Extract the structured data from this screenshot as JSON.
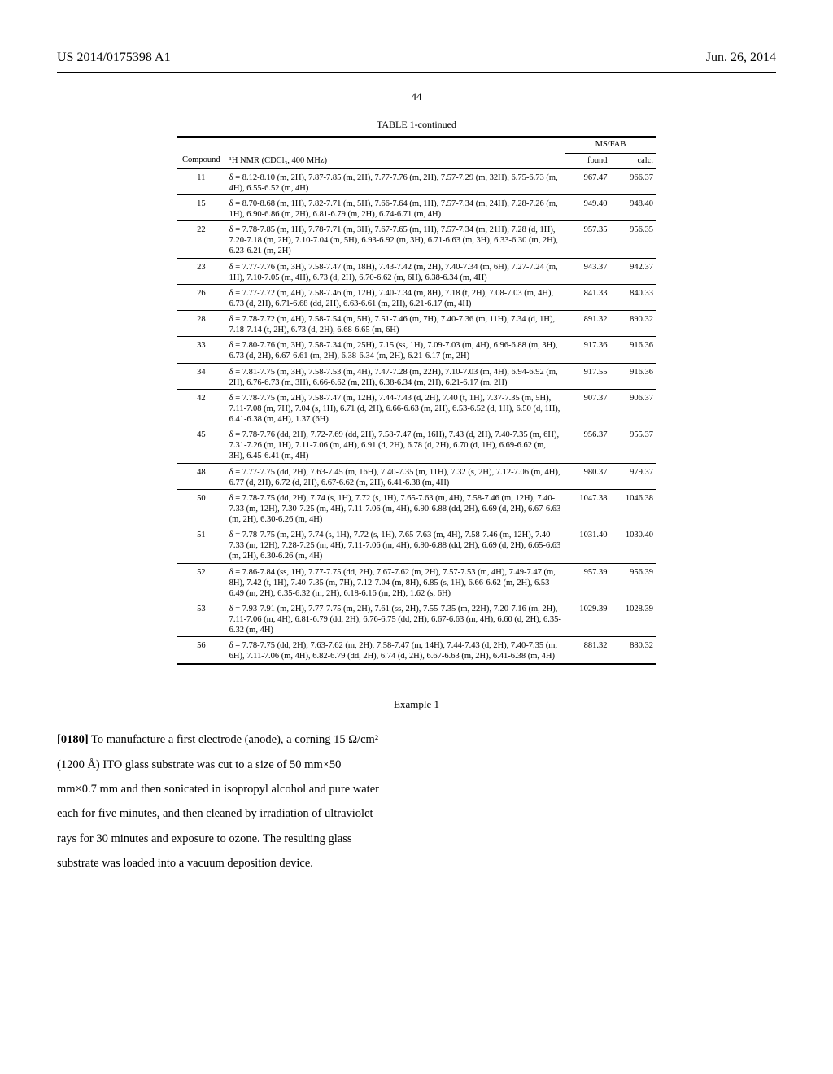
{
  "header": {
    "left": "US 2014/0175398 A1",
    "right": "Jun. 26, 2014"
  },
  "page_number": "44",
  "table": {
    "title": "TABLE 1-continued",
    "col_compound": "Compound",
    "col_nmr": "¹H NMR (CDCl₃, 400 MHz)",
    "col_ms_group": "MS/FAB",
    "col_found": "found",
    "col_calc": "calc.",
    "rows": [
      {
        "c": "11",
        "nmr": "δ = 8.12-8.10 (m, 2H), 7.87-7.85 (m, 2H), 7.77-7.76 (m, 2H), 7.57-7.29 (m, 32H), 6.75-6.73 (m, 4H), 6.55-6.52 (m, 4H)",
        "f": "967.47",
        "ca": "966.37"
      },
      {
        "c": "15",
        "nmr": "δ = 8.70-8.68 (m, 1H), 7.82-7.71 (m, 5H), 7.66-7.64 (m, 1H), 7.57-7.34 (m, 24H), 7.28-7.26 (m, 1H), 6.90-6.86 (m, 2H), 6.81-6.79 (m, 2H), 6.74-6.71 (m, 4H)",
        "f": "949.40",
        "ca": "948.40"
      },
      {
        "c": "22",
        "nmr": "δ = 7.78-7.85 (m, 1H), 7.78-7.71 (m, 3H), 7.67-7.65 (m, 1H), 7.57-7.34 (m, 21H), 7.28 (d, 1H), 7.20-7.18 (m, 2H), 7.10-7.04 (m, 5H), 6.93-6.92 (m, 3H), 6.71-6.63 (m, 3H), 6.33-6.30 (m, 2H), 6.23-6.21 (m, 2H)",
        "f": "957.35",
        "ca": "956.35"
      },
      {
        "c": "23",
        "nmr": "δ = 7.77-7.76 (m, 3H), 7.58-7.47 (m, 18H), 7.43-7.42 (m, 2H), 7.40-7.34 (m, 6H), 7.27-7.24 (m, 1H), 7.10-7.05 (m, 4H), 6.73 (d, 2H), 6.70-6.62 (m, 6H), 6.38-6.34 (m, 4H)",
        "f": "943.37",
        "ca": "942.37"
      },
      {
        "c": "26",
        "nmr": "δ = 7.77-7.72 (m, 4H), 7.58-7.46 (m, 12H), 7.40-7.34 (m, 8H), 7.18 (t, 2H), 7.08-7.03 (m, 4H), 6.73 (d, 2H), 6.71-6.68 (dd, 2H), 6.63-6.61 (m, 2H), 6.21-6.17 (m, 4H)",
        "f": "841.33",
        "ca": "840.33"
      },
      {
        "c": "28",
        "nmr": "δ = 7.78-7.72 (m, 4H), 7.58-7.54 (m, 5H), 7.51-7.46 (m, 7H), 7.40-7.36 (m, 11H), 7.34 (d, 1H), 7.18-7.14 (t, 2H), 6.73 (d, 2H), 6.68-6.65 (m, 6H)",
        "f": "891.32",
        "ca": "890.32"
      },
      {
        "c": "33",
        "nmr": "δ = 7.80-7.76 (m, 3H), 7.58-7.34 (m, 25H), 7.15 (ss, 1H), 7.09-7.03 (m, 4H), 6.96-6.88 (m, 3H), 6.73 (d, 2H), 6.67-6.61 (m, 2H), 6.38-6.34 (m, 2H), 6.21-6.17 (m, 2H)",
        "f": "917.36",
        "ca": "916.36"
      },
      {
        "c": "34",
        "nmr": "δ = 7.81-7.75 (m, 3H), 7.58-7.53 (m, 4H), 7.47-7.28 (m, 22H), 7.10-7.03 (m, 4H), 6.94-6.92 (m, 2H), 6.76-6.73 (m, 3H), 6.66-6.62 (m, 2H), 6.38-6.34 (m, 2H), 6.21-6.17 (m, 2H)",
        "f": "917.55",
        "ca": "916.36"
      },
      {
        "c": "42",
        "nmr": "δ = 7.78-7.75 (m, 2H), 7.58-7.47 (m, 12H), 7.44-7.43 (d, 2H), 7.40 (t, 1H), 7.37-7.35 (m, 5H), 7.11-7.08 (m, 7H), 7.04 (s, 1H), 6.71 (d, 2H), 6.66-6.63 (m, 2H), 6.53-6.52 (d, 1H), 6.50 (d, 1H), 6.41-6.38 (m, 4H), 1.37 (6H)",
        "f": "907.37",
        "ca": "906.37"
      },
      {
        "c": "45",
        "nmr": "δ = 7.78-7.76 (dd, 2H), 7.72-7.69 (dd, 2H), 7.58-7.47 (m, 16H), 7.43 (d, 2H), 7.40-7.35 (m, 6H), 7.31-7.26 (m, 1H), 7.11-7.06 (m, 4H), 6.91 (d, 2H), 6.78 (d, 2H), 6.70 (d, 1H), 6.69-6.62 (m, 3H), 6.45-6.41 (m, 4H)",
        "f": "956.37",
        "ca": "955.37"
      },
      {
        "c": "48",
        "nmr": "δ = 7.77-7.75 (dd, 2H), 7.63-7.45 (m, 16H), 7.40-7.35 (m, 11H), 7.32 (s, 2H), 7.12-7.06 (m, 4H), 6.77 (d, 2H), 6.72 (d, 2H), 6.67-6.62 (m, 2H), 6.41-6.38 (m, 4H)",
        "f": "980.37",
        "ca": "979.37"
      },
      {
        "c": "50",
        "nmr": "δ = 7.78-7.75 (dd, 2H), 7.74 (s, 1H), 7.72 (s, 1H), 7.65-7.63 (m, 4H), 7.58-7.46 (m, 12H), 7.40-7.33 (m, 12H), 7.30-7.25 (m, 4H), 7.11-7.06 (m, 4H), 6.90-6.88 (dd, 2H), 6.69 (d, 2H), 6.67-6.63 (m, 2H), 6.30-6.26 (m, 4H)",
        "f": "1047.38",
        "ca": "1046.38"
      },
      {
        "c": "51",
        "nmr": "δ = 7.78-7.75 (m, 2H), 7.74 (s, 1H), 7.72 (s, 1H), 7.65-7.63 (m, 4H), 7.58-7.46 (m, 12H), 7.40-7.33 (m, 12H), 7.28-7.25 (m, 4H), 7.11-7.06 (m, 4H), 6.90-6.88 (dd, 2H), 6.69 (d, 2H), 6.65-6.63 (m, 2H), 6.30-6.26 (m, 4H)",
        "f": "1031.40",
        "ca": "1030.40"
      },
      {
        "c": "52",
        "nmr": "δ = 7.86-7.84 (ss, 1H), 7.77-7.75 (dd, 2H), 7.67-7.62 (m, 2H), 7.57-7.53 (m, 4H), 7.49-7.47 (m, 8H), 7.42 (t, 1H), 7.40-7.35 (m, 7H), 7.12-7.04 (m, 8H), 6.85 (s, 1H), 6.66-6.62 (m, 2H), 6.53-6.49 (m, 2H), 6.35-6.32 (m, 2H), 6.18-6.16 (m, 2H), 1.62 (s, 6H)",
        "f": "957.39",
        "ca": "956.39"
      },
      {
        "c": "53",
        "nmr": "δ = 7.93-7.91 (m, 2H), 7.77-7.75 (m, 2H), 7.61 (ss, 2H), 7.55-7.35 (m, 22H), 7.20-7.16 (m, 2H), 7.11-7.06 (m, 4H), 6.81-6.79 (dd, 2H), 6.76-6.75 (dd, 2H), 6.67-6.63 (m, 4H), 6.60 (d, 2H), 6.35-6.32 (m, 4H)",
        "f": "1029.39",
        "ca": "1028.39"
      },
      {
        "c": "56",
        "nmr": "δ = 7.78-7.75 (dd, 2H), 7.63-7.62 (m, 2H), 7.58-7.47 (m, 14H), 7.44-7.43 (d, 2H), 7.40-7.35 (m, 6H), 7.11-7.06 (m, 4H), 6.82-6.79 (dd, 2H), 6.74 (d, 2H), 6.67-6.63 (m, 2H), 6.41-6.38 (m, 4H)",
        "f": "881.32",
        "ca": "880.32"
      }
    ]
  },
  "example_title": "Example 1",
  "paragraph": {
    "num": "[0180]",
    "text": "   To manufacture a first electrode (anode), a corning 15 Ω/cm² (1200 Å) ITO glass substrate was cut to a size of 50 mm×50 mm×0.7 mm and then sonicated in isopropyl alcohol and pure water each for five minutes, and then cleaned by irradiation of ultraviolet rays for 30 minutes and exposure to ozone. The resulting glass substrate was loaded into a vacuum deposition device."
  }
}
